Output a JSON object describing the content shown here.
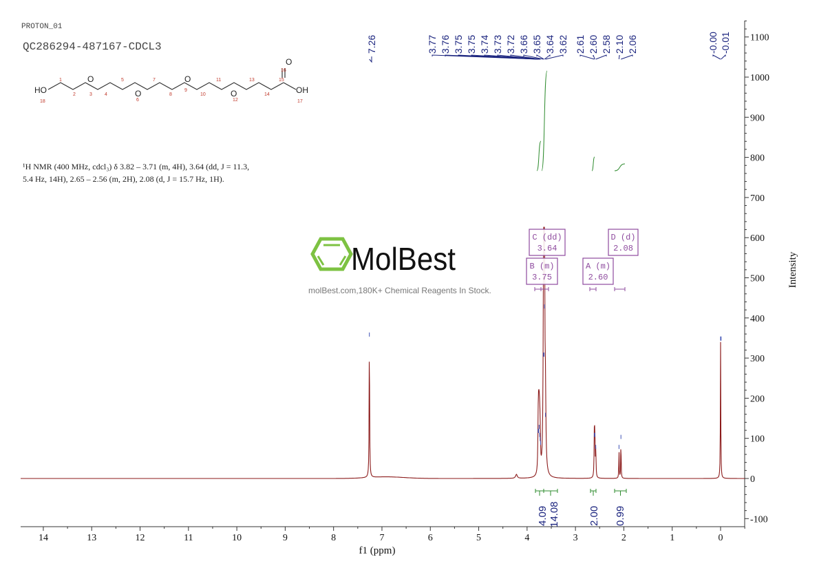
{
  "header": {
    "experiment": "PROTON_01",
    "sample": "QC286294-487167-CDCL3"
  },
  "structure": {
    "atoms": [
      "HO",
      "O",
      "O",
      "O",
      "O",
      "O",
      "OH"
    ],
    "numbers": [
      "1",
      "2",
      "3",
      "4",
      "5",
      "6",
      "7",
      "8",
      "9",
      "10",
      "11",
      "12",
      "13",
      "14",
      "15",
      "16",
      "17",
      "18"
    ]
  },
  "nmr_text": {
    "line1": "¹H NMR (400 MHz, cdcl₃) δ 3.82 – 3.71 (m, 4H), 3.64 (dd, J = 11.3,",
    "line2": "5.4 Hz, 14H), 2.65 – 2.56 (m, 2H), 2.08 (d, J = 15.7 Hz, 1H)."
  },
  "watermark": {
    "brand": "MolBest",
    "tagline": "molBest.com,180K+ Chemical Reagents In Stock.",
    "brand_color": "#7dc242"
  },
  "chart_data": {
    "type": "line",
    "xlabel": "f1 (ppm)",
    "ylabel": "Intensity",
    "xlim": [
      14.47,
      -0.5
    ],
    "ylim": [
      -120,
      1140
    ],
    "x_reversed": true,
    "grid": false,
    "x_ticks": [
      14,
      13,
      12,
      11,
      10,
      9,
      8,
      7,
      6,
      5,
      4,
      3,
      2,
      1,
      0
    ],
    "y_ticks": [
      -100,
      0,
      100,
      200,
      300,
      400,
      500,
      600,
      700,
      800,
      900,
      1000,
      1100
    ],
    "series_color": "#8b1a1a",
    "peaks": [
      {
        "ppm": 7.26,
        "height": 350,
        "width": 0.006
      },
      {
        "ppm": 4.22,
        "height": 10,
        "width": 0.02
      },
      {
        "ppm": 3.77,
        "height": 110,
        "width": 0.008
      },
      {
        "ppm": 3.76,
        "height": 120,
        "width": 0.008
      },
      {
        "ppm": 3.75,
        "height": 100,
        "width": 0.008
      },
      {
        "ppm": 3.74,
        "height": 90,
        "width": 0.008
      },
      {
        "ppm": 3.73,
        "height": 80,
        "width": 0.008
      },
      {
        "ppm": 3.66,
        "height": 300,
        "width": 0.01
      },
      {
        "ppm": 3.65,
        "height": 420,
        "width": 0.01
      },
      {
        "ppm": 3.64,
        "height": 380,
        "width": 0.01
      },
      {
        "ppm": 3.62,
        "height": 150,
        "width": 0.01
      },
      {
        "ppm": 2.61,
        "height": 100,
        "width": 0.006
      },
      {
        "ppm": 2.6,
        "height": 110,
        "width": 0.006
      },
      {
        "ppm": 2.58,
        "height": 70,
        "width": 0.006
      },
      {
        "ppm": 2.1,
        "height": 70,
        "width": 0.005
      },
      {
        "ppm": 2.06,
        "height": 95,
        "width": 0.005
      },
      {
        "ppm": 0.0,
        "height": 340,
        "width": 0.005
      }
    ],
    "peak_labels": [
      "7.26",
      "3.77",
      "3.76",
      "3.75",
      "3.75",
      "3.74",
      "3.73",
      "3.72",
      "3.66",
      "3.65",
      "3.64",
      "3.62",
      "2.61",
      "2.60",
      "2.58",
      "2.10",
      "2.06",
      "-0.00",
      "-0.01"
    ],
    "peak_label_color": "#1a237e",
    "multiplets": [
      {
        "label": "C (dd)",
        "shift": "3.64"
      },
      {
        "label": "D (d)",
        "shift": "2.08"
      },
      {
        "label": "B (m)",
        "shift": "3.75"
      },
      {
        "label": "A (m)",
        "shift": "2.60"
      }
    ],
    "multiplet_color": "#8e4a9e",
    "integrals": [
      {
        "range": [
          3.82,
          3.71
        ],
        "value": "4.09"
      },
      {
        "range": [
          3.71,
          3.56
        ],
        "value": "14.08"
      },
      {
        "range": [
          2.65,
          2.56
        ],
        "value": "2.00"
      },
      {
        "range": [
          2.15,
          1.98
        ],
        "value": "0.99"
      }
    ],
    "integral_color": "#2e8b2e"
  }
}
